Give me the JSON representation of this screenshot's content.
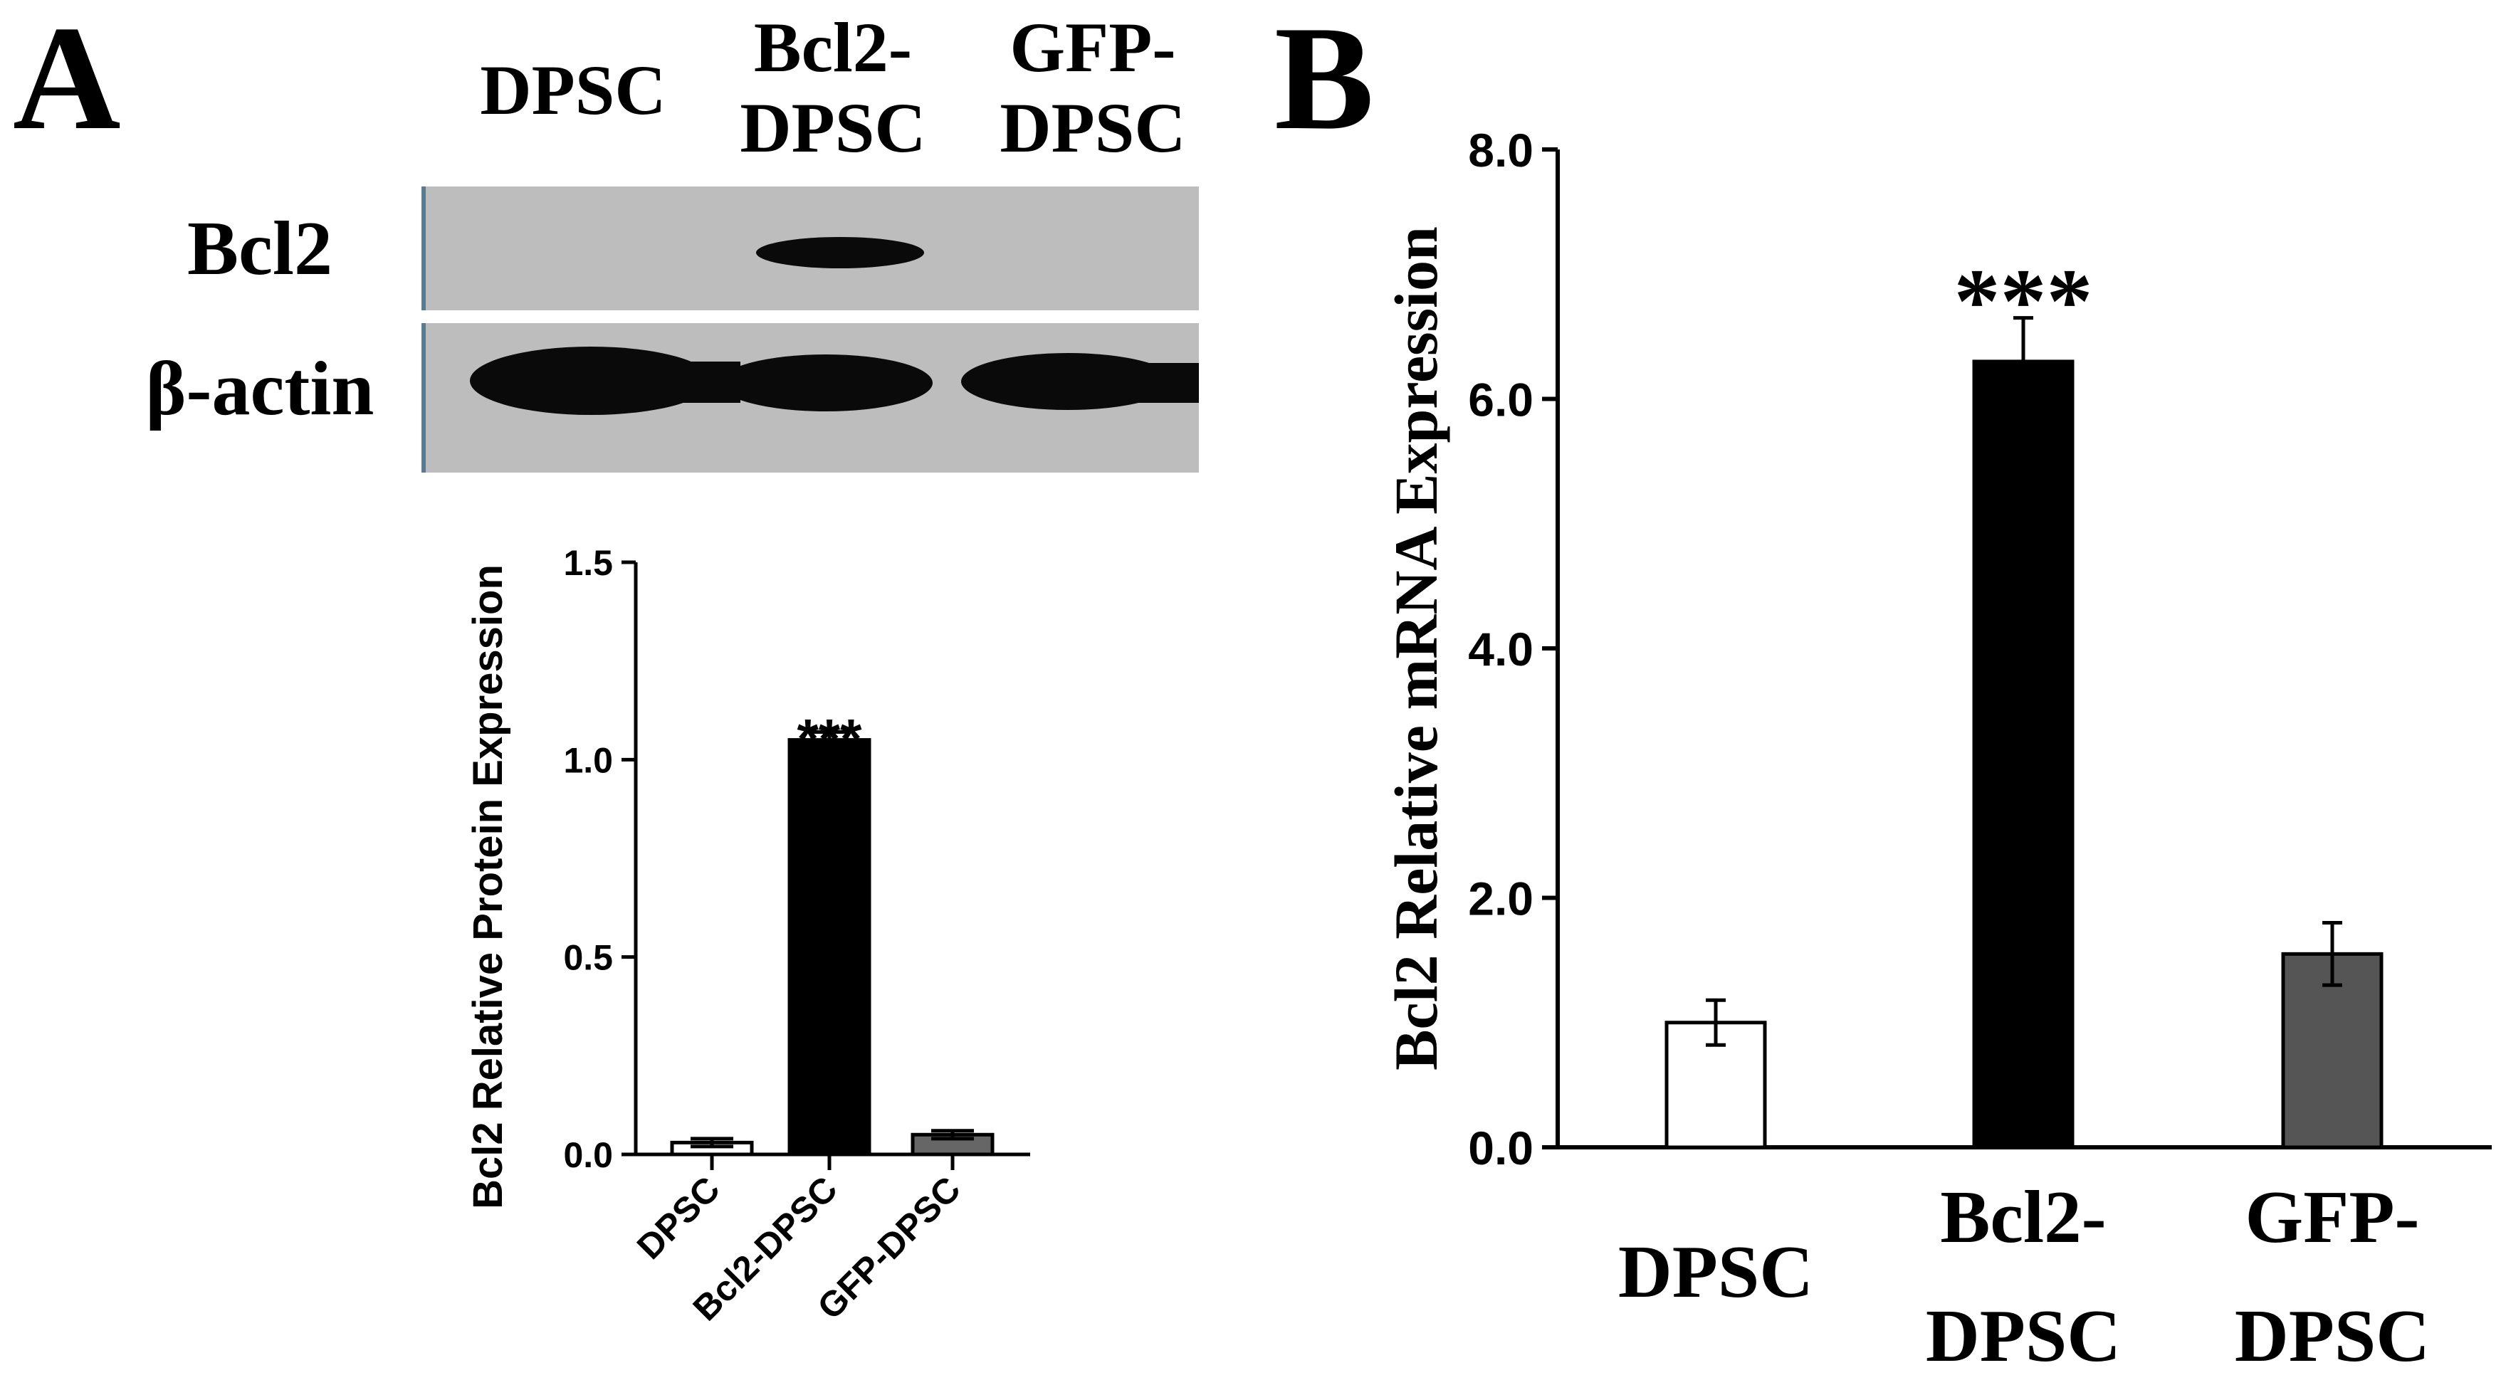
{
  "panel_a": {
    "label": "A",
    "blot": {
      "lane_labels": [
        [
          "DPSC"
        ],
        [
          "Bcl2-",
          "DPSC"
        ],
        [
          "GFP-",
          "DPSC"
        ]
      ],
      "row_labels": [
        "Bcl2",
        "β-actin"
      ],
      "colors": {
        "membrane": "#bdbdbd",
        "band": "#0a0a0a"
      }
    }
  },
  "panel_b": {
    "label": "B"
  },
  "chart_data": [
    {
      "type": "bar",
      "panel": "A",
      "categories": [
        "DPSC",
        "Bcl2-DPSC",
        "GFP-DPSC"
      ],
      "values": [
        0.03,
        1.05,
        0.05
      ],
      "errors": [
        0.01,
        0.02,
        0.01
      ],
      "bar_colors": [
        "#ffffff",
        "#000000",
        "#666666"
      ],
      "significance": [
        "",
        "***",
        ""
      ],
      "ylabel": "Bcl2 Relative Protein Expression",
      "xlabel": "",
      "ylim": [
        0,
        1.5
      ],
      "yticks": [
        "0.0",
        "0.5",
        "1.0",
        "1.5"
      ]
    },
    {
      "type": "bar",
      "panel": "B",
      "categories": [
        [
          "DPSC"
        ],
        [
          "Bcl2-",
          "DPSC"
        ],
        [
          "GFP-",
          "DPSC"
        ]
      ],
      "values": [
        1.0,
        6.3,
        1.55
      ],
      "errors": [
        0.18,
        0.35,
        0.25
      ],
      "bar_colors": [
        "#ffffff",
        "#000000",
        "#555555"
      ],
      "significance": [
        "",
        "***",
        ""
      ],
      "ylabel": "Bcl2 Relative mRNA Expression",
      "xlabel": "",
      "ylim": [
        0,
        8.0
      ],
      "yticks": [
        "0.0",
        "2.0",
        "4.0",
        "6.0",
        "8.0"
      ]
    }
  ]
}
